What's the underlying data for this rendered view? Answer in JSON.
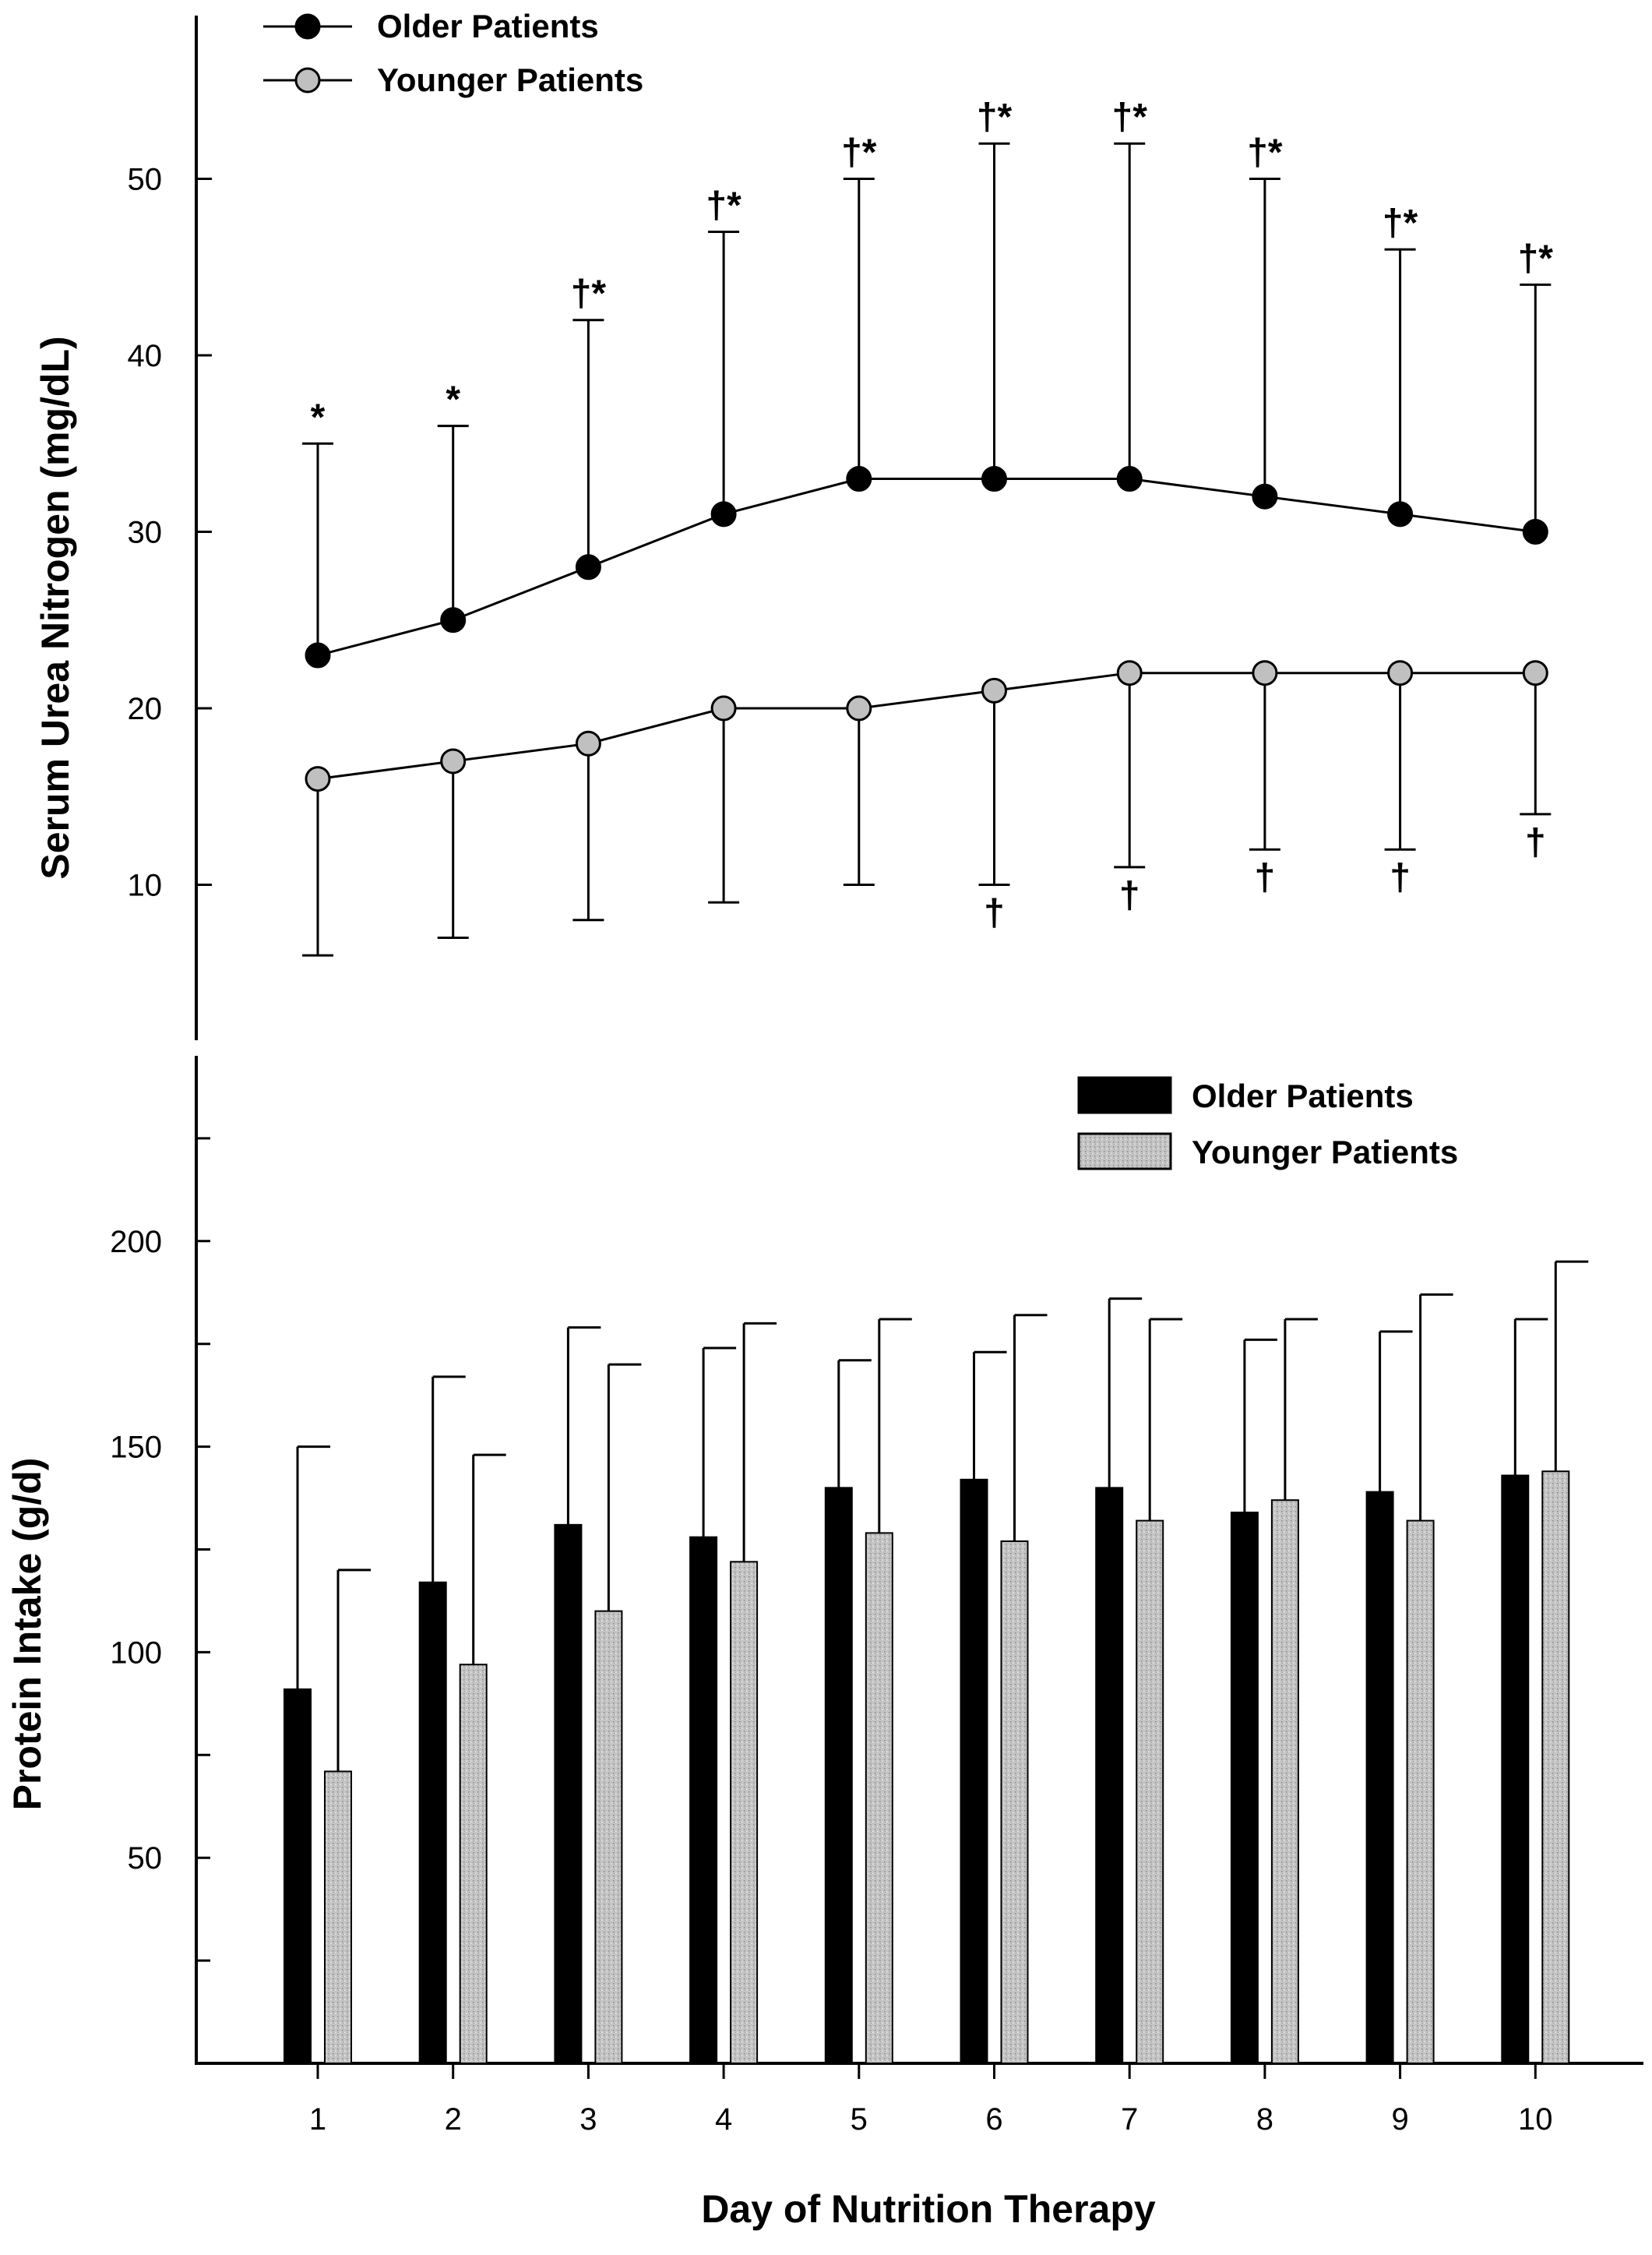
{
  "chart_data": [
    {
      "type": "line",
      "ylabel": "Serum Urea Nitrogen (mg/dL)",
      "xlabel": "",
      "ylim": [
        0,
        58
      ],
      "yticks": [
        10,
        20,
        30,
        40,
        50
      ],
      "x": [
        1,
        2,
        3,
        4,
        5,
        6,
        7,
        8,
        9,
        10
      ],
      "legend": {
        "placement": "top-left",
        "entries": [
          "Older Patients",
          "Younger Patients"
        ]
      },
      "series": [
        {
          "name": "Older Patients",
          "color": "#000000",
          "values": [
            23,
            25,
            28,
            31,
            33,
            33,
            33,
            32,
            31,
            30
          ],
          "error_upper": [
            35,
            36,
            42,
            47,
            50,
            52,
            52,
            50,
            46,
            44
          ],
          "annotations": [
            "*",
            "*",
            "†*",
            "†*",
            "†*",
            "†*",
            "†*",
            "†*",
            "†*",
            "†*"
          ]
        },
        {
          "name": "Younger Patients",
          "color": "#c0c0c0",
          "values": [
            16,
            17,
            18,
            20,
            20,
            21,
            22,
            22,
            22,
            22
          ],
          "error_lower": [
            6,
            7,
            8,
            9,
            10,
            10,
            11,
            12,
            12,
            14
          ],
          "annotations": [
            "",
            "",
            "",
            "",
            "",
            "†",
            "†",
            "†",
            "†",
            "†"
          ]
        }
      ]
    },
    {
      "type": "bar",
      "ylabel": "Protein Intake (g/d)",
      "xlabel": "Day of Nutrition Therapy",
      "ylim": [
        0,
        250
      ],
      "yticks": [
        50,
        100,
        150,
        200
      ],
      "categories": [
        "1",
        "2",
        "3",
        "4",
        "5",
        "6",
        "7",
        "8",
        "9",
        "10"
      ],
      "legend": {
        "placement": "top-right",
        "entries": [
          "Older Patients",
          "Younger Patients"
        ]
      },
      "series": [
        {
          "name": "Older Patients",
          "color": "#000000",
          "values": [
            91,
            117,
            131,
            128,
            140,
            142,
            140,
            134,
            139,
            143
          ],
          "error_upper": [
            150,
            167,
            179,
            174,
            171,
            173,
            186,
            176,
            178,
            181
          ]
        },
        {
          "name": "Younger Patients",
          "color": "#bdbdbd",
          "values": [
            71,
            97,
            110,
            122,
            129,
            127,
            132,
            137,
            132,
            144
          ],
          "error_upper": [
            120,
            148,
            170,
            180,
            181,
            182,
            181,
            181,
            187,
            195
          ]
        }
      ]
    }
  ]
}
